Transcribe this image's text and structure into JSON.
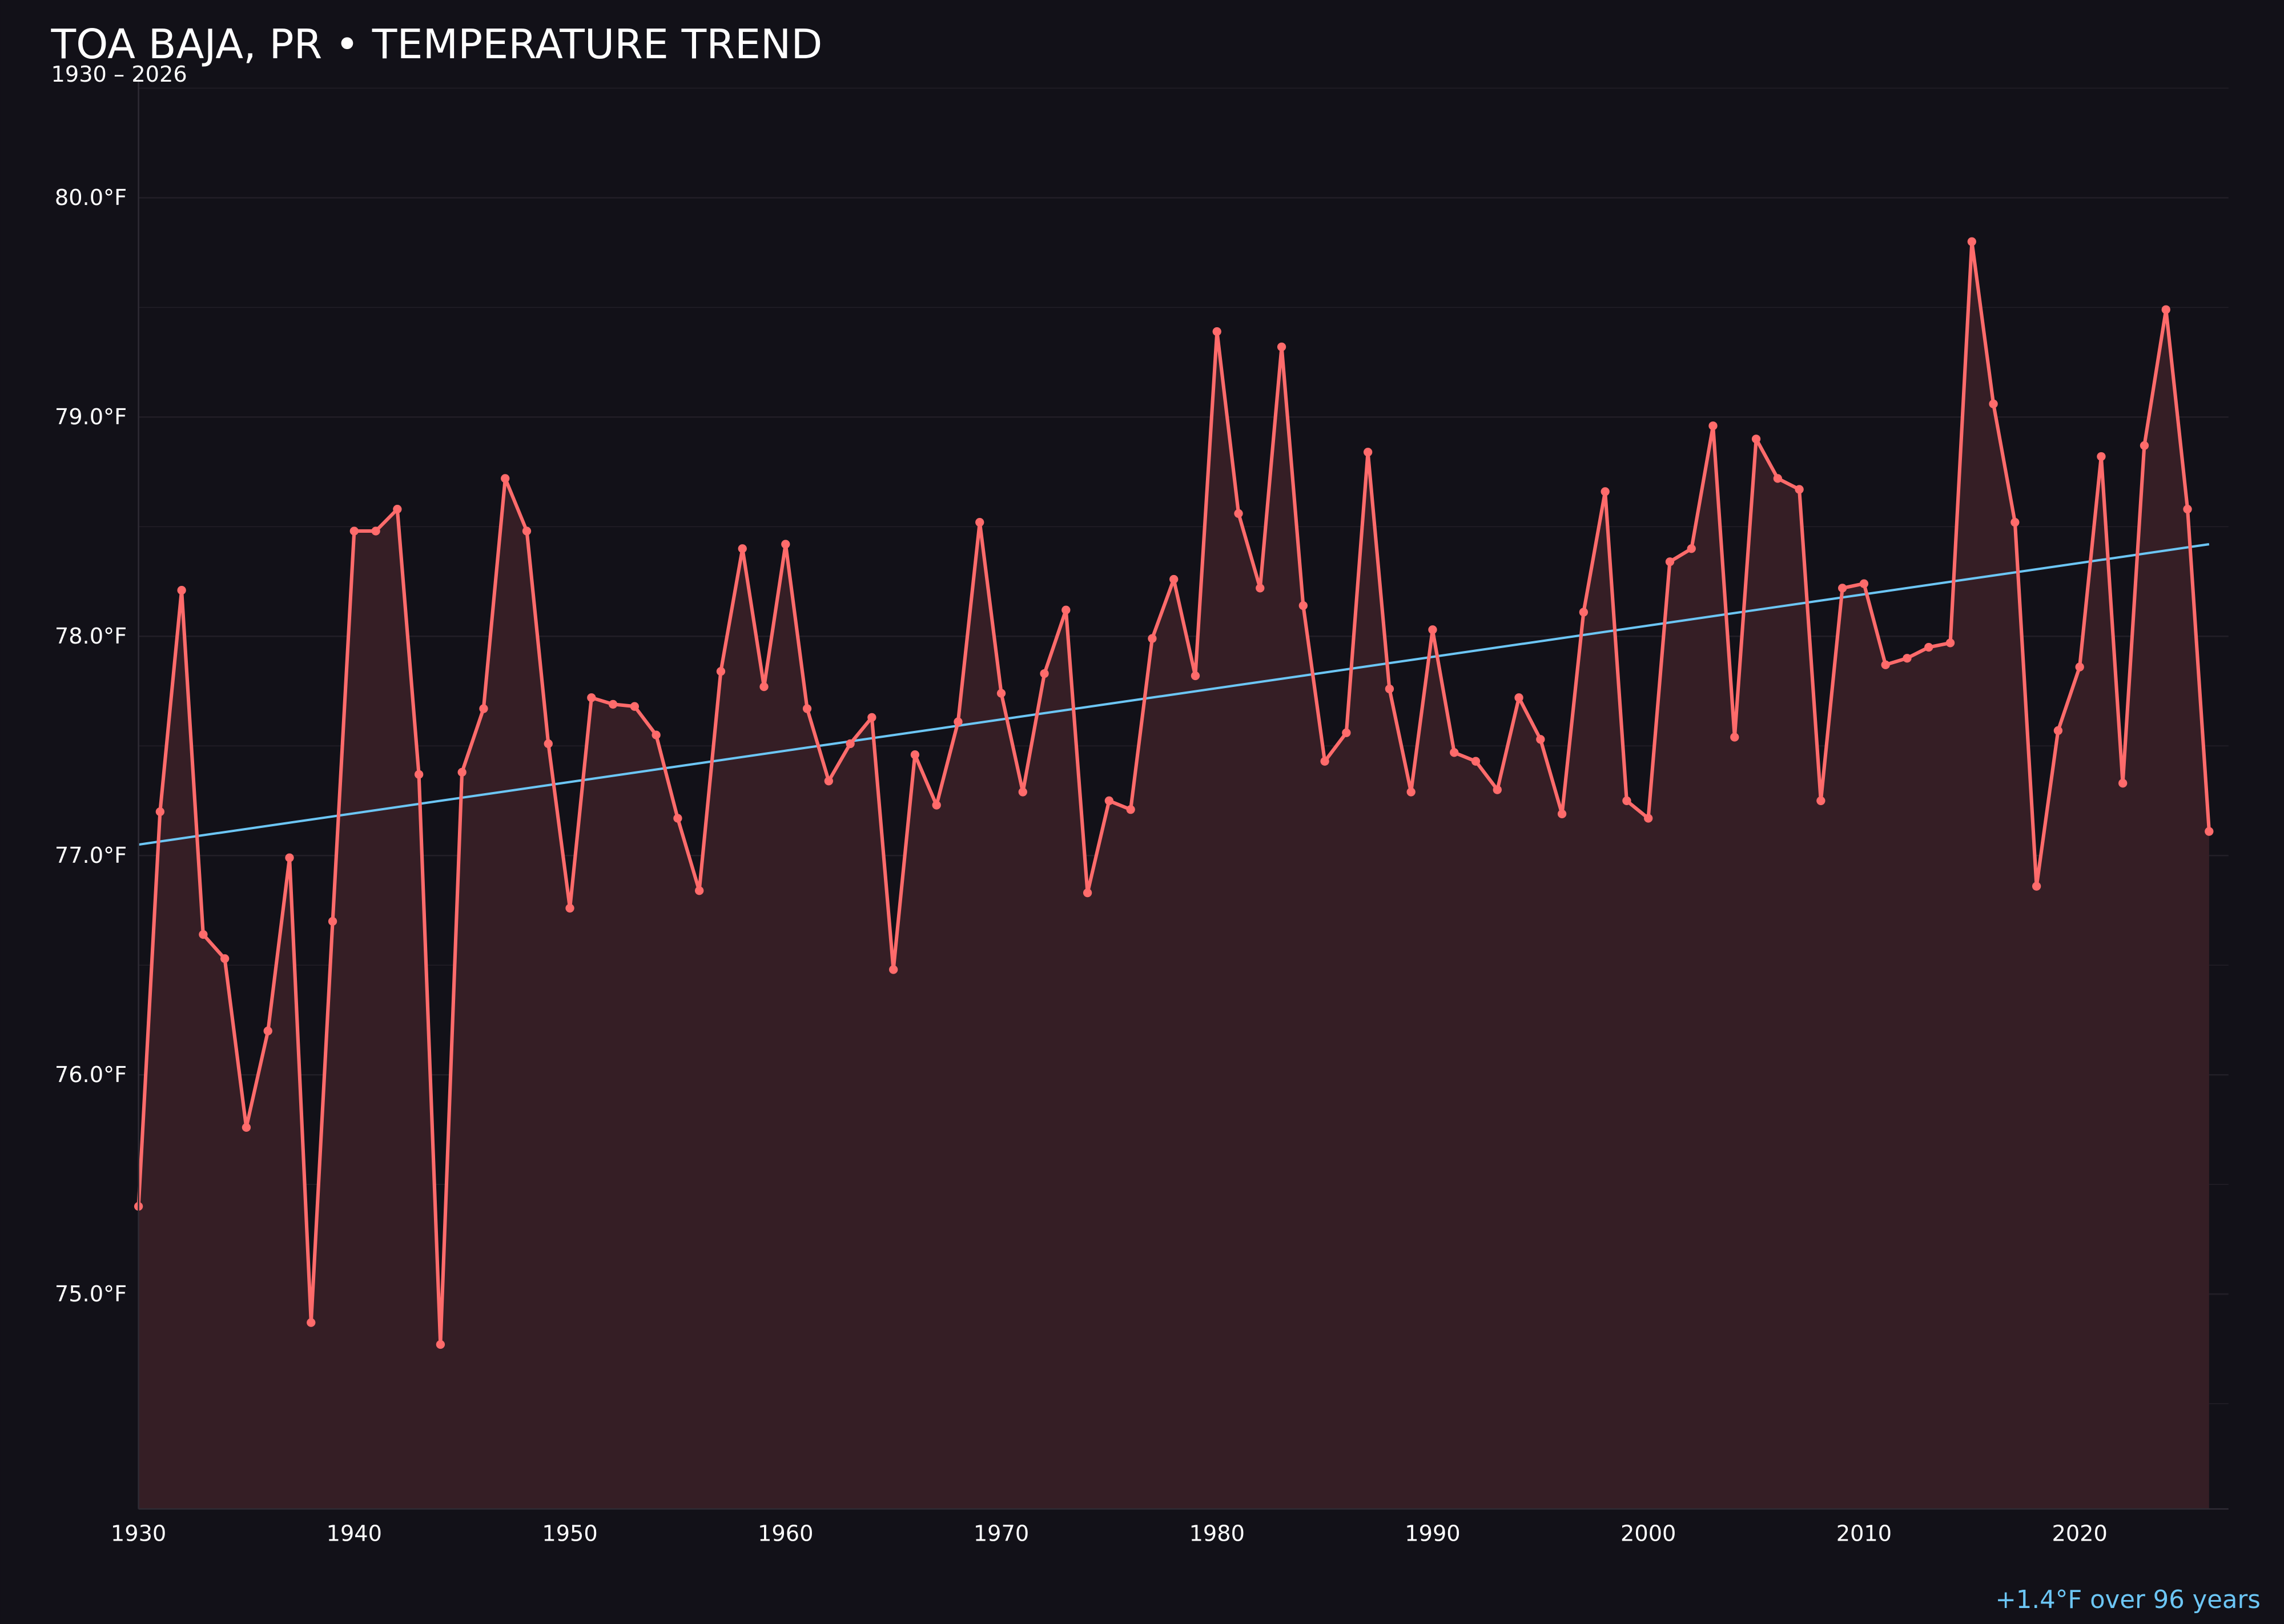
{
  "chart_data": {
    "type": "line",
    "title": "TOA BAJA, PR • TEMPERATURE TREND",
    "subtitle": "1930 – 2026",
    "annotation": "+1.4°F over 96 years",
    "xlim": [
      1930,
      2026.9
    ],
    "ylim": [
      74.02,
      80.57
    ],
    "x_ticks": [
      1930,
      1940,
      1950,
      1960,
      1970,
      1980,
      1990,
      2000,
      2010,
      2020
    ],
    "y_ticks": [
      75,
      76,
      77,
      78,
      79,
      80
    ],
    "y_tick_labels": [
      "75.0°F",
      "76.0°F",
      "77.0°F",
      "78.0°F",
      "79.0°F",
      "80.0°F"
    ],
    "grid": true,
    "x": [
      1930,
      1931,
      1932,
      1933,
      1934,
      1935,
      1936,
      1937,
      1938,
      1939,
      1940,
      1941,
      1942,
      1943,
      1944,
      1945,
      1946,
      1947,
      1948,
      1949,
      1950,
      1951,
      1952,
      1953,
      1954,
      1955,
      1956,
      1957,
      1958,
      1959,
      1960,
      1961,
      1962,
      1963,
      1964,
      1965,
      1966,
      1967,
      1968,
      1969,
      1970,
      1971,
      1972,
      1973,
      1974,
      1975,
      1976,
      1977,
      1978,
      1979,
      1980,
      1981,
      1982,
      1983,
      1984,
      1985,
      1986,
      1987,
      1988,
      1989,
      1990,
      1991,
      1992,
      1993,
      1994,
      1995,
      1996,
      1997,
      1998,
      1999,
      2000,
      2001,
      2002,
      2003,
      2004,
      2005,
      2006,
      2007,
      2008,
      2009,
      2010,
      2011,
      2012,
      2013,
      2014,
      2015,
      2016,
      2017,
      2018,
      2019,
      2020,
      2021,
      2022,
      2023,
      2024,
      2025,
      2026
    ],
    "series": [
      {
        "values": [
          75.4,
          77.2,
          78.21,
          76.64,
          76.53,
          75.76,
          76.2,
          76.99,
          74.87,
          76.7,
          78.48,
          78.48,
          78.58,
          77.37,
          74.77,
          77.38,
          77.67,
          78.72,
          78.48,
          77.51,
          76.76,
          77.72,
          77.69,
          77.68,
          77.55,
          77.17,
          76.84,
          77.84,
          78.4,
          77.77,
          78.42,
          77.67,
          77.34,
          77.51,
          77.63,
          76.48,
          77.46,
          77.23,
          77.61,
          78.52,
          77.74,
          77.29,
          77.83,
          78.12,
          76.83,
          77.25,
          77.21,
          77.99,
          78.26,
          77.82,
          79.39,
          78.56,
          78.22,
          79.32,
          78.14,
          77.43,
          77.56,
          78.84,
          77.76,
          77.29,
          78.03,
          77.47,
          77.43,
          77.3,
          77.72,
          77.53,
          77.19,
          78.11,
          78.66,
          77.25,
          77.17,
          78.34,
          78.4,
          78.96,
          77.54,
          78.9,
          78.72,
          78.67,
          77.25,
          78.22,
          78.24,
          77.87,
          77.9,
          77.95,
          77.97,
          79.8,
          79.06,
          78.52,
          76.86,
          77.57,
          77.86,
          78.82,
          77.33,
          78.87,
          79.49,
          78.58,
          77.11
        ]
      }
    ],
    "trend": {
      "start": [
        1930,
        77.05
      ],
      "end": [
        2026,
        78.42
      ]
    },
    "colors": {
      "background": "#121118",
      "line": "#ff6b6b",
      "fill": "#351e25",
      "trend": "#6cc6f5",
      "grid": "#221f27"
    }
  }
}
